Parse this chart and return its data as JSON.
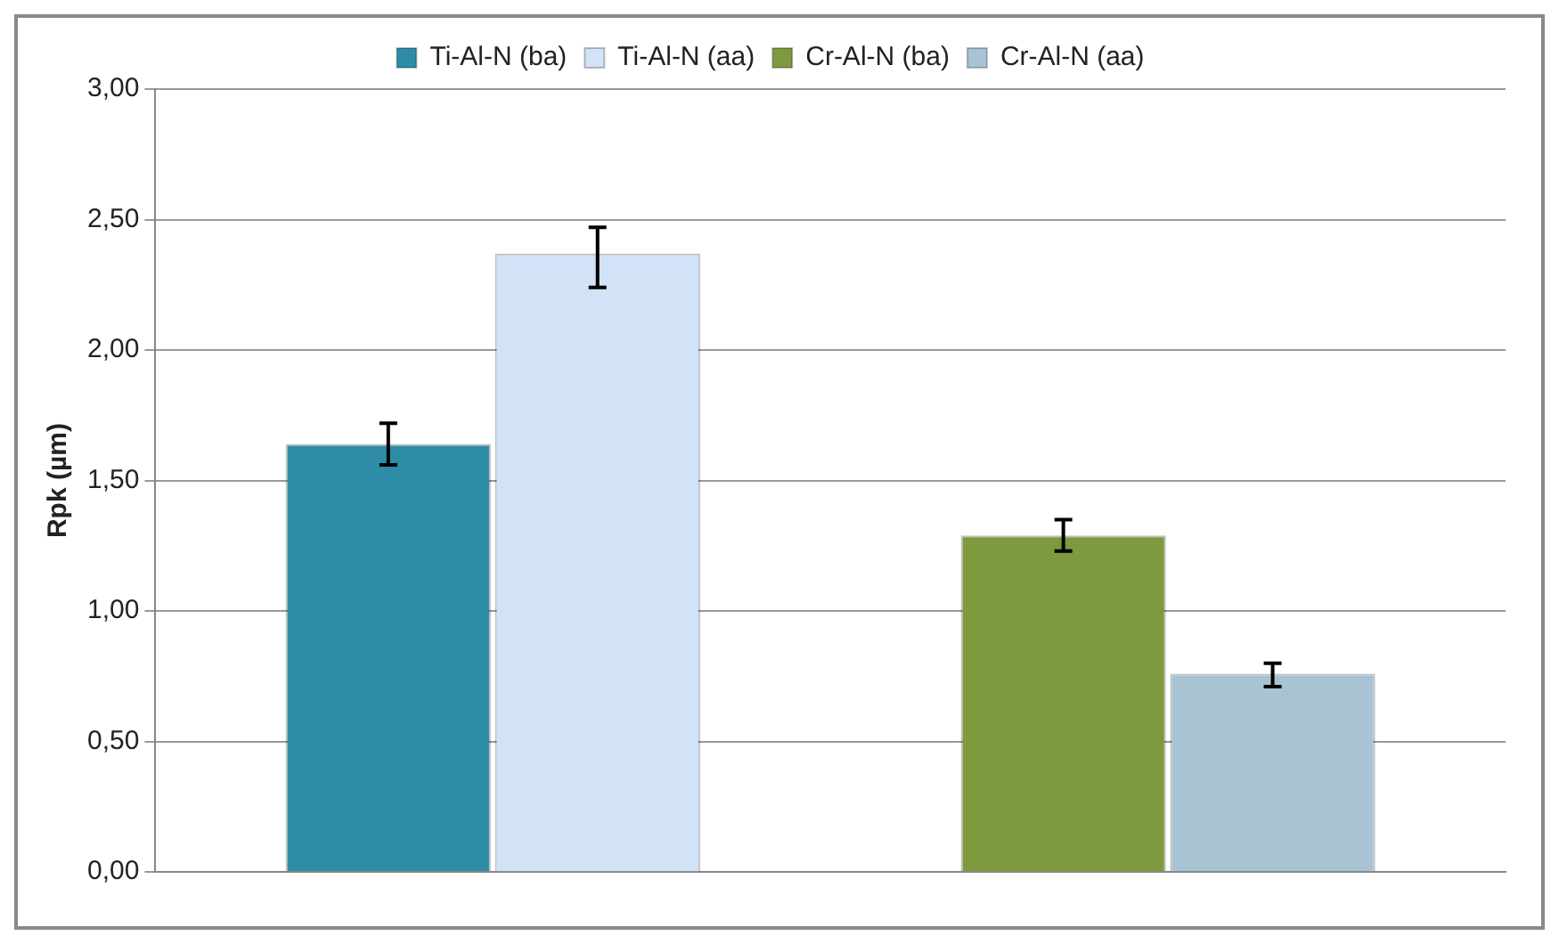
{
  "chart_data": {
    "type": "bar",
    "ylabel": "Rpk (µm)",
    "categories": [
      null,
      null
    ],
    "series": [
      {
        "name": "Ti-Al-N (ba)",
        "color": "#2e8ca6",
        "values": [
          1.64,
          null
        ],
        "errors": [
          [
            1.56,
            1.72
          ],
          null
        ]
      },
      {
        "name": "Ti-Al-N (aa)",
        "color": "#d2e3f7",
        "values": [
          2.37,
          null
        ],
        "errors": [
          [
            2.24,
            2.47
          ],
          null
        ]
      },
      {
        "name": "Cr-Al-N (ba)",
        "color": "#7d9b3e",
        "values": [
          null,
          1.29
        ],
        "errors": [
          null,
          [
            1.23,
            1.35
          ]
        ]
      },
      {
        "name": "Cr-Al-N (aa)",
        "color": "#a8c4d4",
        "values": [
          null,
          0.76
        ],
        "errors": [
          null,
          [
            0.71,
            0.8
          ]
        ]
      }
    ],
    "ylim": [
      0,
      3
    ],
    "yticks": [
      {
        "value": 0,
        "label": "0,00"
      },
      {
        "value": 0.5,
        "label": "0,50"
      },
      {
        "value": 1,
        "label": "1,00"
      },
      {
        "value": 1.5,
        "label": "1,50"
      },
      {
        "value": 2,
        "label": "2,00"
      },
      {
        "value": 2.5,
        "label": "2,50"
      },
      {
        "value": 3,
        "label": "3,00"
      }
    ],
    "grid": "y",
    "legend": "top"
  }
}
